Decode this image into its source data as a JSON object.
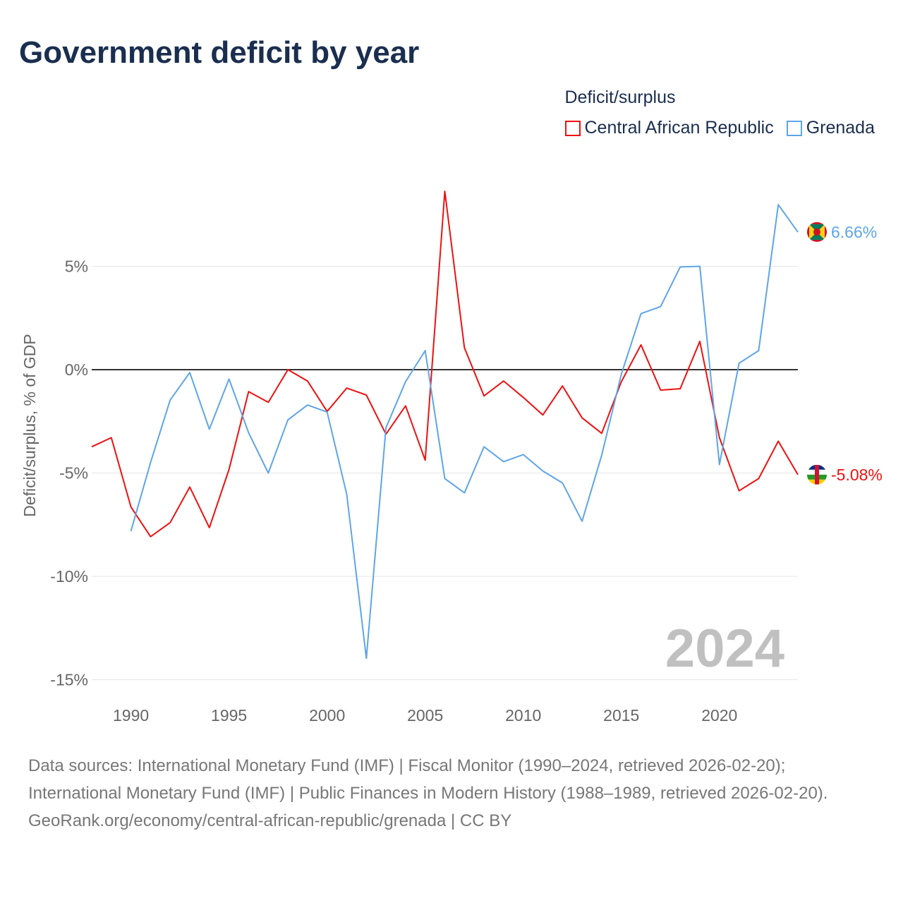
{
  "title": "Government deficit by year",
  "legend": {
    "title": "Deficit/surplus"
  },
  "chart_data": {
    "type": "line",
    "title": "Government deficit by year",
    "ylabel": "Deficit/surplus, % of GDP",
    "xlabel": "",
    "xlim": [
      1988,
      2024
    ],
    "ylim": [
      -15.5,
      9
    ],
    "x_ticks": [
      1990,
      1995,
      2000,
      2005,
      2010,
      2015,
      2020
    ],
    "x_tick_labels": [
      "1990",
      "1995",
      "2000",
      "2005",
      "2010",
      "2015",
      "2020"
    ],
    "y_ticks": [
      5,
      0,
      -5,
      -10,
      -15
    ],
    "y_tick_labels": [
      "5%",
      "0%",
      "-5%",
      "-10%",
      "-15%"
    ],
    "grid": true,
    "legend_position": "top-right",
    "year_label": "2024",
    "series": [
      {
        "name": "Central African Republic",
        "color": "#ee1111",
        "end_label": "-5.08%",
        "flag": "central-african-republic-flag",
        "x": [
          1988,
          1989,
          1990,
          1991,
          1992,
          1993,
          1994,
          1995,
          1996,
          1997,
          1998,
          1999,
          2000,
          2001,
          2002,
          2003,
          2004,
          2005,
          2006,
          2007,
          2008,
          2009,
          2010,
          2011,
          2012,
          2013,
          2014,
          2015,
          2016,
          2017,
          2018,
          2019,
          2020,
          2021,
          2022,
          2023,
          2024
        ],
        "values": [
          -3.73,
          -3.29,
          -6.64,
          -8.08,
          -7.4,
          -5.68,
          -7.64,
          -4.83,
          -1.06,
          -1.58,
          0,
          -0.55,
          -2.02,
          -0.89,
          -1.23,
          -3.12,
          -1.75,
          -4.38,
          8.63,
          1.06,
          -1.27,
          -0.55,
          -1.34,
          -2.19,
          -0.79,
          -2.33,
          -3.08,
          -0.58,
          1.2,
          -0.99,
          -0.92,
          1.37,
          -3.29,
          -5.86,
          -5.27,
          -3.46,
          -5.08
        ]
      },
      {
        "name": "Grenada",
        "color": "#5ea5e8",
        "end_label": "6.66%",
        "flag": "grenada-flag",
        "x": [
          1990,
          1991,
          1992,
          1993,
          1994,
          1995,
          1996,
          1997,
          1998,
          1999,
          2000,
          2001,
          2002,
          2003,
          2004,
          2005,
          2006,
          2007,
          2008,
          2009,
          2010,
          2011,
          2012,
          2013,
          2014,
          2015,
          2016,
          2017,
          2018,
          2019,
          2020,
          2021,
          2022,
          2023,
          2024
        ],
        "values": [
          -7.81,
          -4.49,
          -1.47,
          -0.14,
          -2.88,
          -0.45,
          -3.05,
          -5.0,
          -2.43,
          -1.71,
          -2.05,
          -6.03,
          -13.97,
          -2.81,
          -0.58,
          0.92,
          -5.27,
          -5.96,
          -3.73,
          -4.45,
          -4.11,
          -4.9,
          -5.48,
          -7.33,
          -4.14,
          -0.21,
          2.71,
          3.05,
          4.97,
          5.0,
          -4.59,
          0.31,
          0.92,
          7.98,
          6.66
        ]
      }
    ]
  },
  "footer": {
    "line1": "Data sources: International Monetary Fund (IMF) | Fiscal Monitor (1990–2024, retrieved 2026-02-20); International Monetary Fund (IMF) | Public Finances in Modern History (1988–1989, retrieved 2026-02-20).",
    "line2": "GeoRank.org/economy/central-african-republic/grenada | CC BY"
  }
}
